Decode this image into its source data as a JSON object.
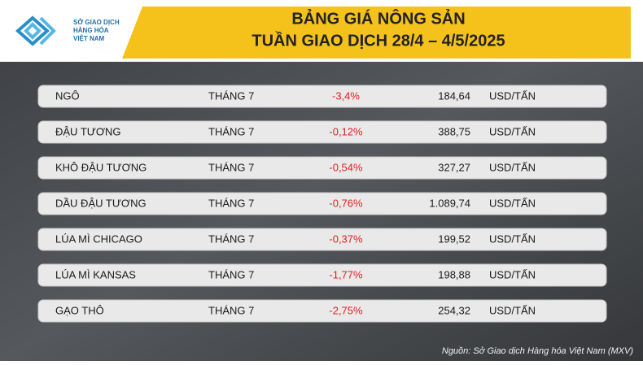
{
  "header": {
    "logo_lines": [
      "SỞ GIAO DỊCH",
      "HÀNG HÓA",
      "VIỆT NAM"
    ],
    "title_lines": [
      "BẢNG GIÁ NÔNG SẢN",
      "TUẦN GIAO DỊCH 28/4 – 4/5/2025"
    ]
  },
  "table": {
    "rows": [
      [
        "NGÔ",
        "THÁNG 7",
        "-3,4%",
        "184,64",
        "USD/TẤN"
      ],
      [
        "ĐẬU TƯƠNG",
        "THÁNG 7",
        "-0,12%",
        "388,75",
        "USD/TẤN"
      ],
      [
        "KHÔ ĐẬU TƯƠNG",
        "THÁNG 7",
        "-0,54%",
        "327,27",
        "USD/TẤN"
      ],
      [
        "DẦU ĐẬU TƯƠNG",
        "THÁNG 7",
        "-0,76%",
        "1.089,74",
        "USD/TẤN"
      ],
      [
        "LÚA MÌ CHICAGO",
        "THÁNG 7",
        "-0,37%",
        "199,52",
        "USD/TẤN"
      ],
      [
        "LÚA MÌ KANSAS",
        "THÁNG 7",
        "-1,77%",
        "198,88",
        "USD/TẤN"
      ],
      [
        "GẠO THÔ",
        "THÁNG 7",
        "-2,75%",
        "254,32",
        "USD/TẤN"
      ]
    ]
  },
  "source": "Nguồn: Sở Giao dịch Hàng hóa Việt Nam (MXV)"
}
